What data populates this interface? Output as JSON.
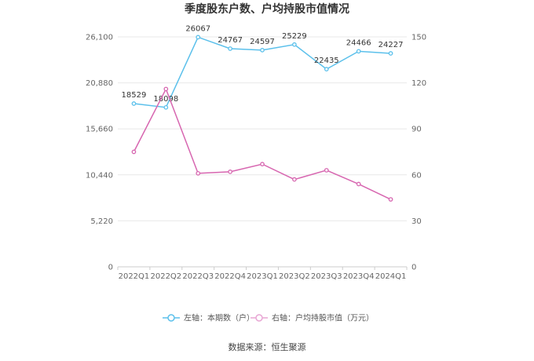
{
  "chart_data": {
    "type": "line",
    "title": "季度股东户数、户均持股市值情况",
    "categories": [
      "2022Q1",
      "2022Q2",
      "2022Q3",
      "2022Q4",
      "2023Q1",
      "2023Q2",
      "2023Q3",
      "2023Q4",
      "2024Q1"
    ],
    "left_axis": {
      "ticks": [
        "0",
        "5,220",
        "10,440",
        "15,660",
        "20,880",
        "26,100"
      ],
      "ylim": [
        0,
        26100
      ]
    },
    "right_axis": {
      "ticks": [
        "0",
        "30",
        "60",
        "90",
        "120",
        "150"
      ],
      "ylim": [
        0,
        150
      ]
    },
    "grid": true,
    "legend_position": "bottom",
    "series": [
      {
        "name": "左轴：本期数（户）",
        "axis": "left",
        "color": "#5bc0eb",
        "values": [
          18529,
          18098,
          26067,
          24767,
          24597,
          25229,
          22435,
          24466,
          24227
        ],
        "labels": [
          "18529",
          "18098",
          "26067",
          "24767",
          "24597",
          "25229",
          "22435",
          "24466",
          "24227"
        ]
      },
      {
        "name": "右轴：户均持股市值（万元）",
        "axis": "right",
        "color": "#d766b0",
        "values": [
          75,
          116,
          61,
          62,
          67,
          57,
          63,
          54,
          44
        ]
      }
    ]
  },
  "source": "数据来源：恒生聚源"
}
